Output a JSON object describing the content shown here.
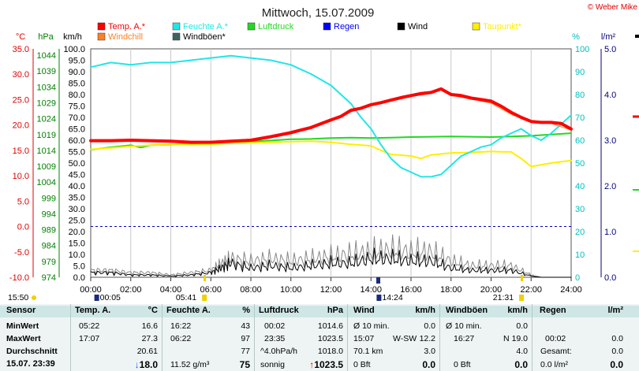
{
  "title": "Mittwoch, 15.07.2009",
  "copyright": "© Weber Mike",
  "legend": [
    {
      "label": "Temp. A.*",
      "color": "#ff0000"
    },
    {
      "label": "Windchill",
      "color": "#ff7f27"
    },
    {
      "label": "Feuchte A.*",
      "color": "#22e6e6"
    },
    {
      "label": "Windböen*",
      "color": "#3c6464"
    },
    {
      "label": "Luftdruck",
      "color": "#22d822"
    },
    {
      "label": "Regen",
      "color": "#0000ff"
    },
    {
      "label": "Wind",
      "color": "#000000"
    },
    {
      "label": "Taupunkt*",
      "color": "#ffee00"
    }
  ],
  "axis_units": {
    "temp": "°C",
    "press": "hPa",
    "wind": "km/h",
    "hum": "%",
    "rain": "l/m²"
  },
  "sun_labels": [
    {
      "text": "15:50",
      "hour": -4.5
    },
    {
      "text": "00:05",
      "hour": 0.3
    },
    {
      "text": "05:41",
      "hour": 5.68
    },
    {
      "text": "14:24",
      "hour": 14.4
    },
    {
      "text": "21:31",
      "hour": 21.52
    }
  ],
  "chart_data": {
    "type": "line",
    "title": "Mittwoch, 15.07.2009",
    "x_unit": "time of day (hours)",
    "x_range": [
      0,
      24
    ],
    "x_tick_labels": [
      "00:00",
      "02:00",
      "04:00",
      "06:00",
      "08:00",
      "10:00",
      "12:00",
      "14:00",
      "16:00",
      "18:00",
      "20:00",
      "22:00",
      "24:00"
    ],
    "y_axes": {
      "temp_c": {
        "range": [
          -10,
          35
        ],
        "ticks": [
          "35.0",
          "30.0",
          "25.0",
          "20.0",
          "15.0",
          "10.0",
          "5.0",
          "0.0",
          "-5.0",
          "-10.0"
        ]
      },
      "pressure_hpa": {
        "range": [
          974,
          1046
        ],
        "ticks": [
          "1044",
          "1039",
          "1034",
          "1029",
          "1024",
          "1019",
          "1014",
          "1009",
          "1004",
          "999",
          "994",
          "989",
          "984",
          "979",
          "974"
        ]
      },
      "wind_kmh": {
        "range": [
          0,
          100
        ],
        "ticks": [
          "100.0",
          "95.0",
          "90.0",
          "85.0",
          "80.0",
          "75.0",
          "70.0",
          "65.0",
          "60.0",
          "55.0",
          "50.0",
          "45.0",
          "40.0",
          "35.0",
          "30.0",
          "25.0",
          "20.0",
          "15.0",
          "10.0",
          "5.0",
          "0.0"
        ]
      },
      "humidity_pct": {
        "range": [
          0,
          100
        ],
        "ticks": [
          "100",
          "90",
          "80",
          "70",
          "60",
          "50",
          "40",
          "30",
          "20",
          "10",
          "0"
        ]
      },
      "rain_lm2": {
        "range": [
          0,
          5
        ],
        "ticks": [
          "5.0",
          "4.0",
          "3.0",
          "2.0",
          "1.0",
          "0.0"
        ]
      }
    },
    "zero_line_temp": 0,
    "series": [
      {
        "name": "Temp. A.*",
        "axis": "temp_c",
        "color": "#ff0000",
        "width": 4,
        "x": [
          0,
          1,
          2,
          3,
          4,
          5,
          6,
          7,
          8,
          9,
          10,
          11,
          12,
          12.5,
          13,
          13.5,
          14,
          14.5,
          15,
          15.5,
          16,
          16.5,
          17,
          17.5,
          18,
          18.5,
          19,
          19.5,
          20,
          20.5,
          21,
          21.5,
          22,
          22.5,
          23,
          23.5,
          24
        ],
        "y": [
          16.9,
          16.9,
          17.0,
          16.9,
          16.8,
          16.6,
          16.6,
          16.8,
          17.0,
          17.7,
          18.5,
          19.5,
          21.0,
          21.7,
          22.9,
          23.3,
          24.0,
          24.4,
          24.9,
          25.4,
          25.8,
          26.2,
          26.4,
          27.1,
          26.0,
          25.8,
          25.3,
          25.0,
          24.7,
          23.7,
          22.5,
          21.5,
          20.7,
          20.5,
          20.5,
          20.3,
          19.2
        ]
      },
      {
        "name": "Windchill",
        "axis": "temp_c",
        "color": "#ff7f27",
        "width": 1,
        "x": [
          0,
          2,
          4,
          6,
          8,
          10,
          12,
          13,
          14,
          15,
          16,
          17,
          17.5,
          18,
          19,
          20,
          21,
          22,
          23,
          24
        ],
        "y": [
          16.7,
          16.8,
          16.6,
          16.4,
          16.8,
          18.2,
          20.8,
          22.6,
          23.8,
          24.7,
          25.6,
          26.2,
          26.9,
          25.8,
          25.1,
          24.3,
          22.1,
          20.5,
          20.3,
          19.0
        ]
      },
      {
        "name": "Feuchte A.*",
        "axis": "humidity_pct",
        "color": "#22e6e6",
        "width": 2,
        "x": [
          0,
          1,
          2,
          3,
          4,
          5,
          6,
          7,
          8,
          9,
          10,
          11,
          12,
          12.5,
          13,
          13.5,
          14,
          14.5,
          15,
          15.5,
          16,
          16.5,
          17,
          17.5,
          18,
          18.5,
          19,
          19.5,
          20,
          20.5,
          21,
          21.5,
          22,
          22.5,
          23,
          23.5,
          24
        ],
        "y": [
          92,
          94,
          93,
          94,
          94,
          95,
          96,
          97,
          96,
          95,
          93,
          89,
          84,
          80,
          76,
          70,
          65,
          58,
          52,
          48,
          46,
          44,
          44,
          45,
          49,
          53,
          55,
          57,
          58,
          61,
          63,
          65,
          62,
          60,
          63,
          67,
          71
        ]
      },
      {
        "name": "Luftdruck",
        "axis": "pressure_hpa",
        "color": "#22d822",
        "width": 2,
        "x": [
          0,
          1,
          2,
          2.5,
          3,
          4,
          5,
          6,
          7,
          8,
          9,
          10,
          11,
          12,
          13,
          14,
          15,
          16,
          17,
          18,
          19,
          20,
          21,
          22,
          23,
          24
        ],
        "y": [
          1014.2,
          1015.0,
          1015.6,
          1014.9,
          1015.6,
          1015.8,
          1016.0,
          1016.3,
          1016.6,
          1016.8,
          1017.1,
          1017.5,
          1017.6,
          1017.9,
          1018.0,
          1017.9,
          1018.0,
          1018.2,
          1018.3,
          1018.4,
          1018.3,
          1018.2,
          1018.4,
          1018.6,
          1019.0,
          1019.4
        ]
      },
      {
        "name": "Taupunkt*",
        "axis": "temp_c",
        "color": "#ffee00",
        "width": 2,
        "x": [
          0,
          1,
          2,
          3,
          4,
          5,
          6,
          7,
          8,
          9,
          10,
          11,
          12,
          13,
          14,
          14.5,
          15,
          16,
          16.5,
          17,
          18,
          19,
          20,
          20.5,
          21,
          21.5,
          22,
          23,
          24
        ],
        "y": [
          15.2,
          15.5,
          15.8,
          16.0,
          16.2,
          16.1,
          16.2,
          16.4,
          16.5,
          16.6,
          16.7,
          16.8,
          16.6,
          16.2,
          15.9,
          15.0,
          14.2,
          13.9,
          13.4,
          14.1,
          14.5,
          14.6,
          14.8,
          14.7,
          14.7,
          13.4,
          11.8,
          12.5,
          13.0
        ]
      },
      {
        "name": "Wind",
        "axis": "wind_kmh",
        "color": "#000000",
        "width": 1,
        "noisy": true,
        "x": [
          0,
          1,
          2,
          3,
          4,
          5,
          6,
          6.5,
          7,
          8,
          9,
          10,
          11,
          12,
          13,
          14,
          15,
          16,
          17,
          18,
          19,
          20,
          21,
          22,
          22.5,
          23,
          24
        ],
        "y": [
          2,
          2,
          1,
          1,
          0.5,
          1,
          2,
          4,
          6,
          4,
          5,
          4,
          5,
          6,
          6,
          8,
          8,
          7,
          7,
          4,
          3,
          3,
          3,
          0.5,
          0,
          0,
          0
        ]
      },
      {
        "name": "Windböen*",
        "axis": "wind_kmh",
        "color": "#888888",
        "width": 1,
        "noisy": true,
        "x": [
          0,
          1,
          2,
          3,
          4,
          5,
          6,
          6.5,
          7,
          8,
          9,
          10,
          11,
          12,
          13,
          14,
          15,
          16,
          17,
          18,
          19,
          20,
          21,
          22,
          22.5,
          23,
          24
        ],
        "y": [
          3,
          3,
          2,
          2,
          1,
          2,
          3,
          6,
          8,
          7,
          8,
          7,
          8,
          9,
          10,
          11,
          12,
          11,
          11,
          7,
          5,
          5,
          5,
          1,
          0,
          0,
          0
        ]
      }
    ]
  },
  "summary": {
    "sensor": {
      "header": "Sensor",
      "rows": [
        "MinWert",
        "MaxWert",
        "Durchschnitt"
      ],
      "date": "15.07. 23:39"
    },
    "temp": {
      "header": "Temp. A.",
      "unit": "°C",
      "min_time": "05:22",
      "min_val": "16.6",
      "max_time": "17:07",
      "max_val": "27.3",
      "avg_val": "20.61",
      "current": "18.0",
      "trend": "↓"
    },
    "hum": {
      "header": "Feuchte A.",
      "unit": "%",
      "min_time": "16:22",
      "min_val": "43",
      "max_time": "06:22",
      "max_val": "97",
      "avg_val": "77",
      "abs_hum": "11.52 g/m³",
      "current": "75"
    },
    "press": {
      "header": "Luftdruck",
      "unit": "hPa",
      "min_time": "00:02",
      "min_val": "1014.6",
      "max_time": "23:35",
      "max_val": "1023.5",
      "trend_rate": "^4.0hPa/h",
      "avg_val": "1018.0",
      "forecast": "sonnig",
      "current": "1023.5",
      "trend": "↑"
    },
    "wind": {
      "header": "Wind",
      "unit": "km/h",
      "r1_label": "Ø 10 min.",
      "r1_val": "0.0",
      "r2_time": "15:07",
      "r2_dir": "W-SW",
      "r2_val": "12.2",
      "r3_label": "70.1 km",
      "r3_val": "3.0",
      "bft": "0 Bft",
      "current": "0.0"
    },
    "gust": {
      "header": "Windböen",
      "unit": "km/h",
      "r1_label": "Ø 10 min.",
      "r1_val": "0.0",
      "r2_time": "16:27",
      "r2_dir": "N",
      "r2_val": "19.0",
      "r3_val": "4.0",
      "bft": "0 Bft",
      "current": "0.0"
    },
    "rain": {
      "header": "Regen",
      "unit": "l/m²",
      "r2_time": "00:02",
      "r2_val": "0.0",
      "r3_label": "Gesamt:",
      "r3_val": "0.0",
      "r4_label": "0.0 l/m²",
      "current": "0.0"
    }
  }
}
